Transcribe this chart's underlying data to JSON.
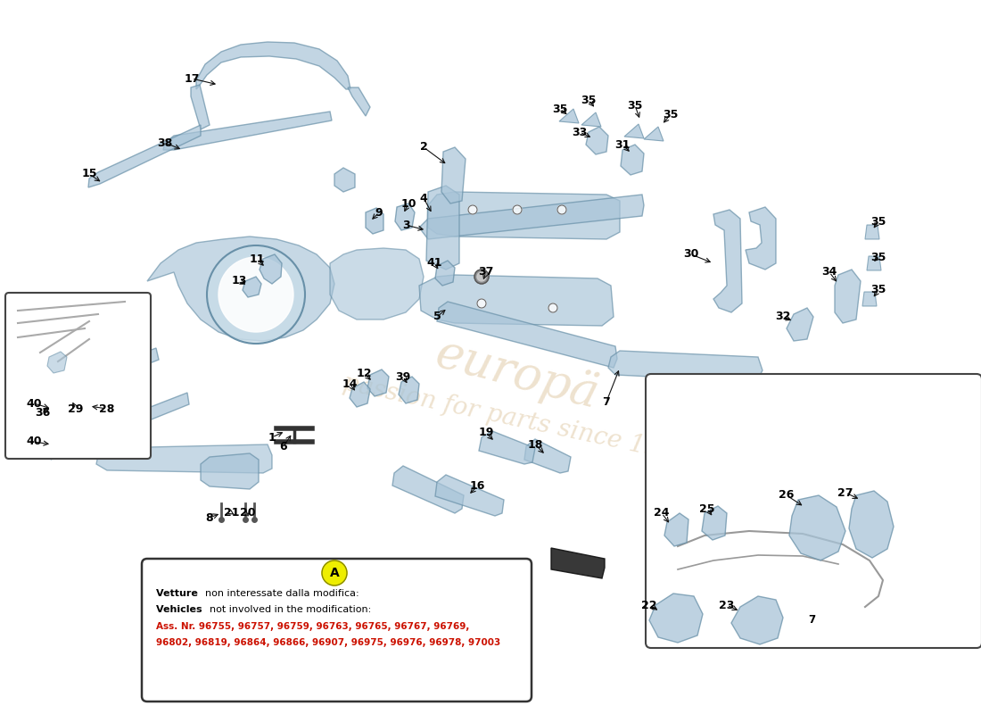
{
  "bg_color": "#ffffff",
  "fc": "#a8c4d8",
  "fcd": "#6890a8",
  "fc2": "#c8dce8",
  "note_title1_bold": "Vetture ",
  "note_title1_normal": "non interessate dalla modifica:",
  "note_title2_bold": "Vehicles ",
  "note_title2_normal": "not involved in the modification:",
  "note_body": "Ass. Nr. 96755, 96757, 96759, 96763, 96765, 96767, 96769,\n96802, 96819, 96864, 96866, 96907, 96975, 96976, 96978, 97003",
  "watermark_color": "#c8a060",
  "watermark_alpha": 0.3
}
